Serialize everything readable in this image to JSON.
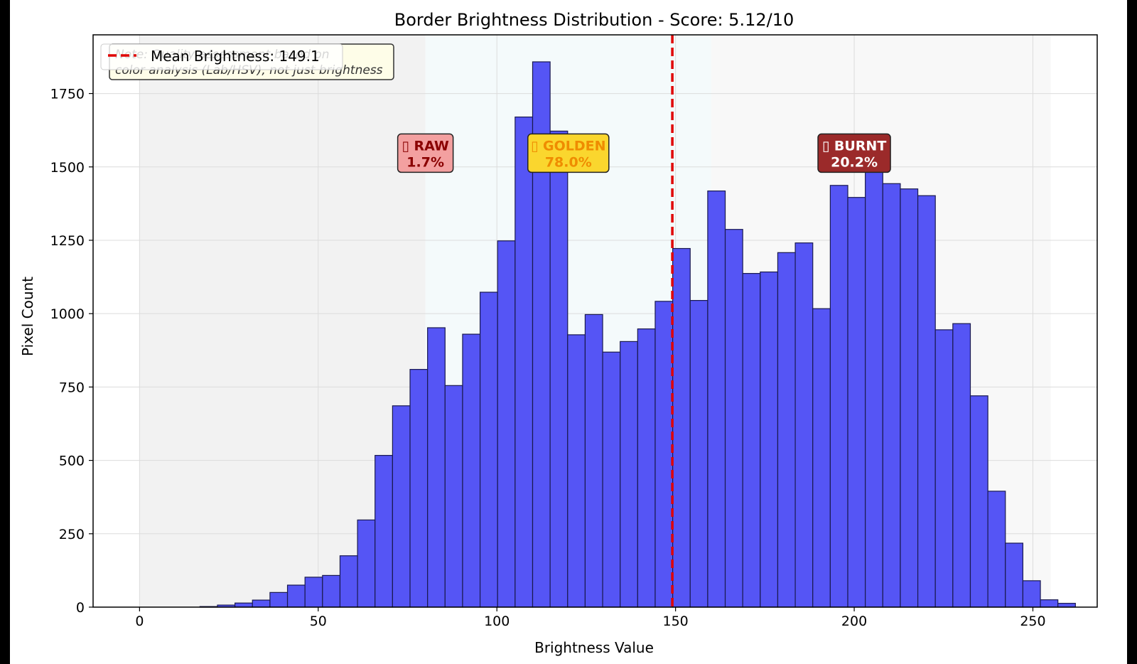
{
  "chart_data": {
    "type": "bar",
    "title": "Border Brightness Distribution - Score: 5.12/10",
    "xlabel": "Brightness Value",
    "ylabel": "Pixel Count",
    "xlim": [
      -13,
      268
    ],
    "ylim": [
      0,
      1950
    ],
    "xticks": [
      0,
      50,
      100,
      150,
      200,
      250
    ],
    "yticks": [
      0,
      250,
      500,
      750,
      1000,
      1250,
      1500,
      1750
    ],
    "grid": true,
    "bin_width": 4.9,
    "bins_start": 12,
    "series": [
      {
        "color": "#5555f5",
        "values": [
          0,
          2,
          7,
          14,
          24,
          50,
          75,
          102,
          108,
          175,
          297,
          517,
          686,
          810,
          952,
          755,
          930,
          1073,
          1248,
          1670,
          1858,
          1622,
          928,
          997,
          869,
          905,
          948,
          1042,
          1222,
          1045,
          1418,
          1287,
          1137,
          1142,
          1208,
          1241,
          1017,
          1437,
          1396,
          1498,
          1443,
          1425,
          1402,
          945,
          966,
          720,
          395,
          218,
          90,
          25,
          13
        ]
      }
    ],
    "regions": [
      {
        "x0": 0,
        "x1": 80,
        "color": "#f2f2f2"
      },
      {
        "x0": 80,
        "x1": 160,
        "color": "#f4fafb"
      },
      {
        "x0": 160,
        "x1": 255,
        "color": "#f8f8f8"
      }
    ],
    "mean_line": {
      "x": 149.1,
      "color": "#e00000",
      "label": "Mean Brightness: 149.1"
    },
    "note": {
      "line1": "Note: Quality assessment based on",
      "line2": "color analysis (Lab/HSV), not just brightness"
    },
    "annotations": [
      {
        "x": 80,
        "y": 1530,
        "line1": "▯ RAW",
        "line2": "1.7%",
        "bg": "#f3a0a0",
        "fg": "#8a0000"
      },
      {
        "x": 120,
        "y": 1530,
        "line1": "▯ GOLDEN",
        "line2": "78.0%",
        "bg": "#fad62e",
        "fg": "#ef8c00"
      },
      {
        "x": 200,
        "y": 1530,
        "line1": "▯ BURNT",
        "line2": "20.2%",
        "bg": "#9b2a2a",
        "fg": "#ffffff"
      }
    ]
  }
}
